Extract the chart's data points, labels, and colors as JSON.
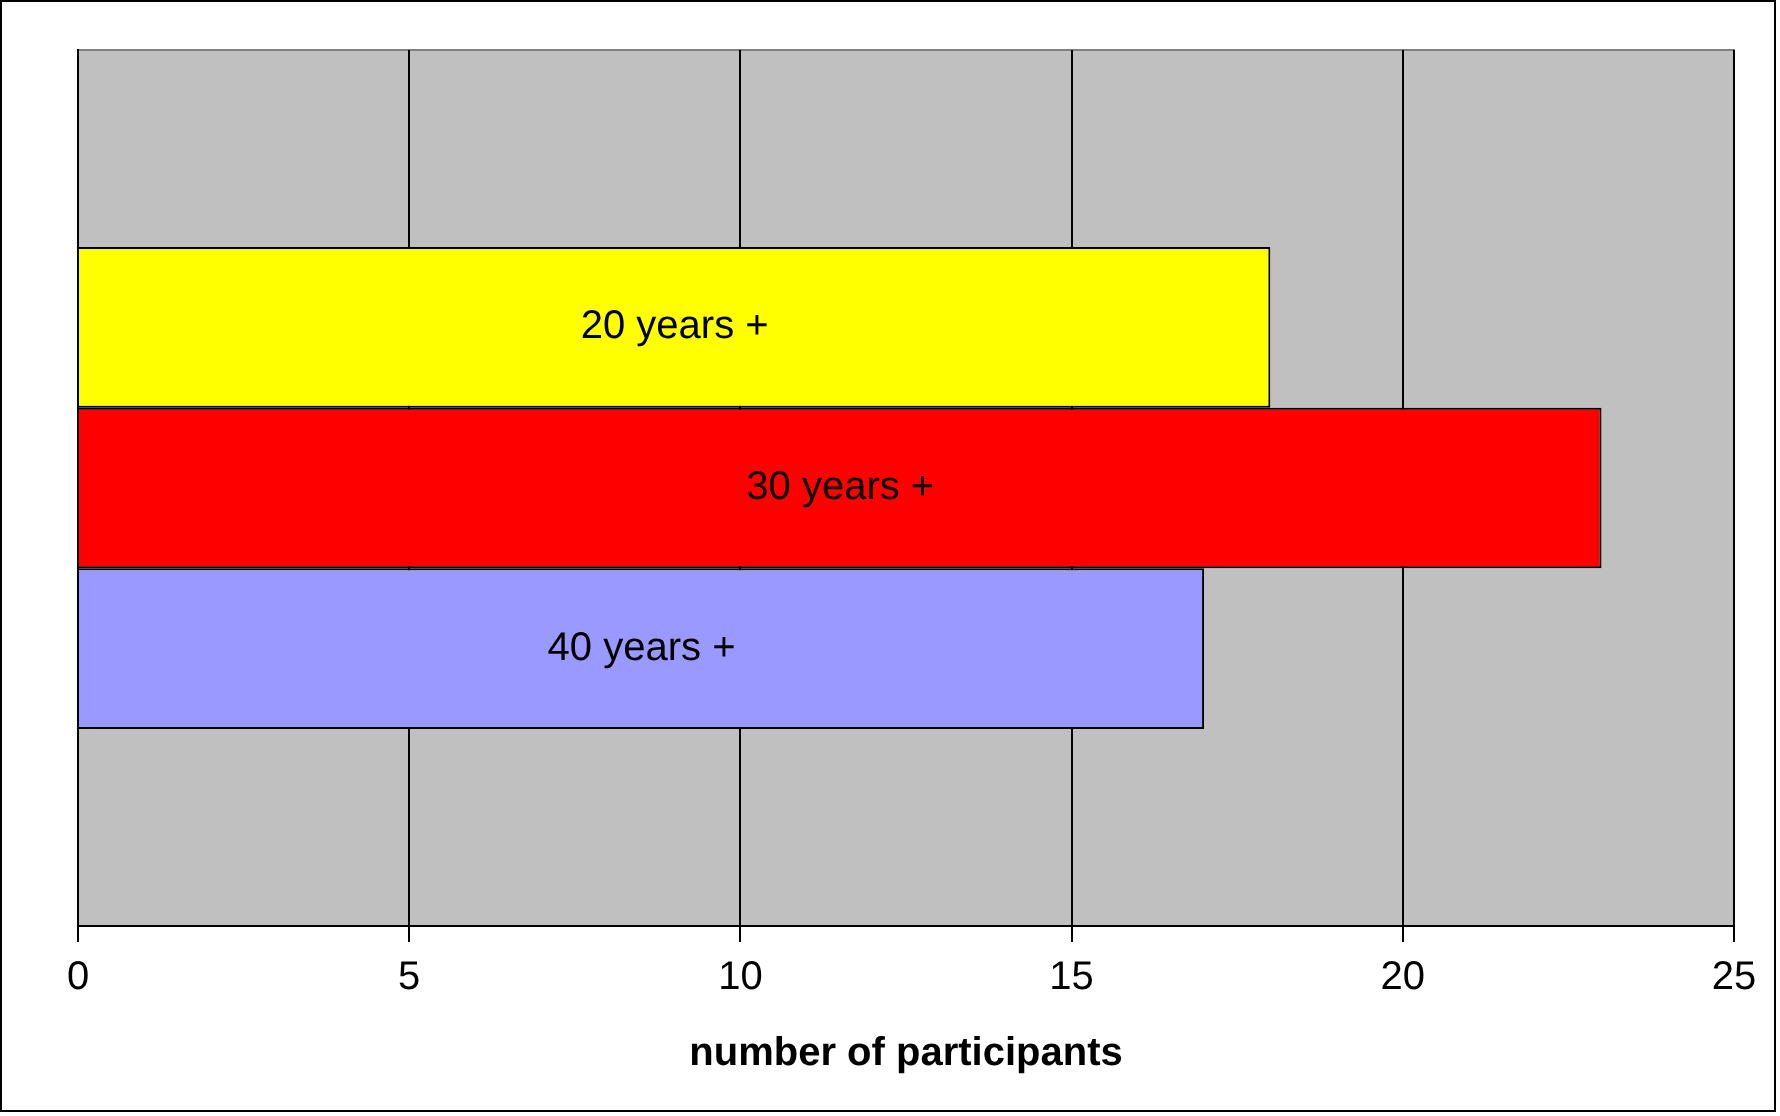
{
  "chart_data": {
    "type": "bar",
    "orientation": "horizontal",
    "xlabel": "number of participants",
    "categories": [
      null
    ],
    "series": [
      {
        "name": "20 years +",
        "color": "#ffff00",
        "values": [
          18
        ]
      },
      {
        "name": "30 years +",
        "color": "#ff0000",
        "values": [
          23
        ]
      },
      {
        "name": "40 years +",
        "color": "#9999ff",
        "values": [
          17
        ]
      }
    ],
    "xlim": [
      0,
      25
    ],
    "xticks": [
      0,
      5,
      10,
      15,
      20,
      25
    ],
    "grid": "x",
    "legend": false,
    "tick_labels": "x"
  }
}
